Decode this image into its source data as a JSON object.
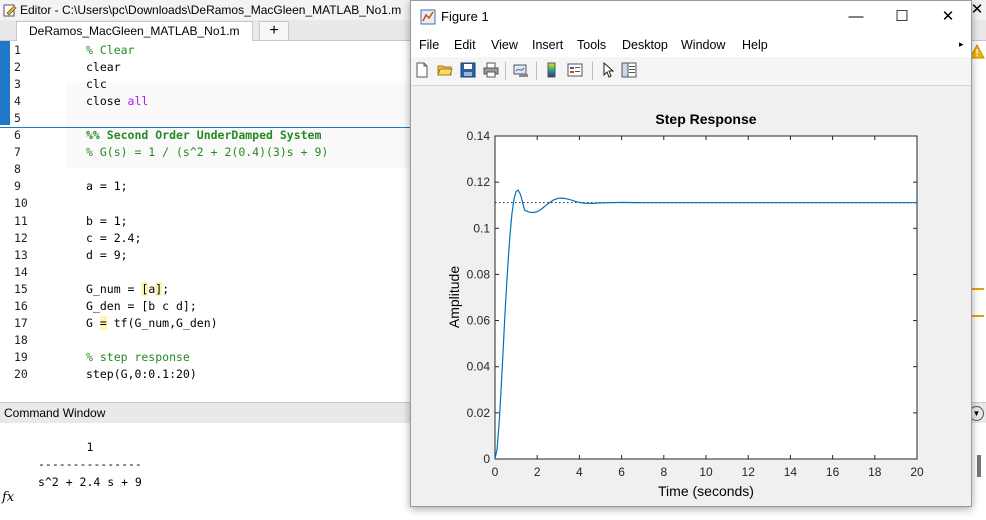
{
  "editor": {
    "title": "Editor - C:\\Users\\pc\\Downloads\\DeRamos_MacGleen_MATLAB_No1.m",
    "close_label": "✕",
    "tab_label": "DeRamos_MacGleen_MATLAB_No1.m",
    "add_tab_label": "+",
    "lines": [
      {
        "n": "1",
        "code": "% Clear"
      },
      {
        "n": "2",
        "code": "clear"
      },
      {
        "n": "3",
        "code": "clc"
      },
      {
        "n": "4",
        "code_pre": "close ",
        "code_kw": "all"
      },
      {
        "n": "5",
        "code": ""
      },
      {
        "n": "6",
        "code": "%% Second Order UnderDamped System"
      },
      {
        "n": "7",
        "code": "% G(s) = 1 / (s^2 + 2(0.4)(3)s + 9)"
      },
      {
        "n": "8",
        "code": ""
      },
      {
        "n": "9",
        "code": "a = 1;"
      },
      {
        "n": "10",
        "code": ""
      },
      {
        "n": "11",
        "code": "b = 1;"
      },
      {
        "n": "12",
        "code": "c = 2.4;"
      },
      {
        "n": "13",
        "code": "d = 9;"
      },
      {
        "n": "14",
        "code": ""
      },
      {
        "n": "15",
        "code_pre": "G_num = ",
        "code_hl": "[",
        "code_mid": "a",
        "code_hl2": "]",
        "code_post": ";"
      },
      {
        "n": "16",
        "code": "G_den = [b c d];"
      },
      {
        "n": "17",
        "code_pre": "G ",
        "code_hl": "=",
        "code_post": " tf(G_num,G_den)"
      },
      {
        "n": "18",
        "code": ""
      },
      {
        "n": "19",
        "code": "% step response"
      },
      {
        "n": "20",
        "code": "step(G,0:0.1:20)"
      }
    ]
  },
  "command_window": {
    "title": "Command Window",
    "numerator": "       1",
    "divider": "---------------",
    "denominator": "s^2 + 2.4 s + 9",
    "prompt_label": "fx"
  },
  "figure": {
    "title": "Figure 1",
    "minimize_label": "—",
    "maximize_label": "☐",
    "close_label": "✕",
    "menu": [
      "File",
      "Edit",
      "View",
      "Insert",
      "Tools",
      "Desktop",
      "Window",
      "Help"
    ],
    "toolbar_icons": [
      "new-figure-icon",
      "open-icon",
      "save-icon",
      "print-icon",
      "link-plot-icon",
      "colorbar-icon",
      "legend-icon",
      "pointer-icon",
      "property-inspector-icon"
    ],
    "colors": {
      "line": "#0072bd",
      "background": "#f0f0f0"
    }
  },
  "chart_data": {
    "type": "line",
    "title": "Step Response",
    "xlabel": "Time (seconds)",
    "ylabel": "Amplitude",
    "xlim": [
      0,
      20
    ],
    "ylim": [
      0,
      0.14
    ],
    "xticks": [
      0,
      2,
      4,
      6,
      8,
      10,
      12,
      14,
      16,
      18,
      20
    ],
    "yticks": [
      0,
      0.02,
      0.04,
      0.06,
      0.08,
      0.1,
      0.12,
      0.14
    ],
    "ytick_labels": [
      "0",
      "0.02",
      "0.04",
      "0.06",
      "0.08",
      "0.1",
      "0.12",
      "0.14"
    ],
    "steady_state": 0.1111,
    "grid": false,
    "series": [
      {
        "x": [
          0,
          0.1,
          0.2,
          0.3,
          0.4,
          0.5,
          0.6,
          0.7,
          0.8,
          0.9,
          1.0,
          1.1,
          1.2,
          1.3,
          1.4,
          1.6,
          1.8,
          2.0,
          2.2,
          2.4,
          2.6,
          2.8,
          3.0,
          3.2,
          3.4,
          3.6,
          3.8,
          4.0,
          4.2,
          4.4,
          4.6,
          4.8,
          5.0,
          5.5,
          6.0,
          7.0,
          8.0,
          10.0,
          12.0,
          14.0,
          16.0,
          18.0,
          20.0
        ],
        "y": [
          0,
          0.0044,
          0.0159,
          0.0318,
          0.0496,
          0.0672,
          0.083,
          0.0961,
          0.1061,
          0.1127,
          0.116,
          0.1165,
          0.1148,
          0.1117,
          0.1079,
          0.107,
          0.1068,
          0.1072,
          0.1083,
          0.1098,
          0.1112,
          0.1124,
          0.113,
          0.1131,
          0.1128,
          0.1123,
          0.1117,
          0.1112,
          0.1109,
          0.1108,
          0.1108,
          0.1109,
          0.111,
          0.1111,
          0.1112,
          0.1111,
          0.1111,
          0.1111,
          0.1111,
          0.1111,
          0.1111,
          0.1111,
          0.1111
        ]
      }
    ]
  }
}
